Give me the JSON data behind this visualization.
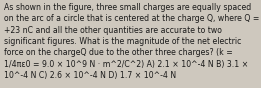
{
  "text": "As shown in the figure, three small charges are equally spaced\non the arc of a circle that is centered at the charge Q, where Q =\n+23 nC and all the other quantities are accurate to two\nsignificant figures. What is the magnitude of the net electric\nforce on the chargeQ due to the other three charges? (k =\n1/4πε0 = 9.0 × 10^9 N · m^2/C^2) A) 2.1 × 10^-4 N B) 3.1 ×\n10^-4 N C) 2.6 × 10^-4 N D) 1.7 × 10^-4 N",
  "fontsize": 5.55,
  "background_color": "#cec8be",
  "text_color": "#1a1a1a",
  "font_family": "DejaVu Sans",
  "fig_width": 2.61,
  "fig_height": 0.88,
  "dpi": 100
}
